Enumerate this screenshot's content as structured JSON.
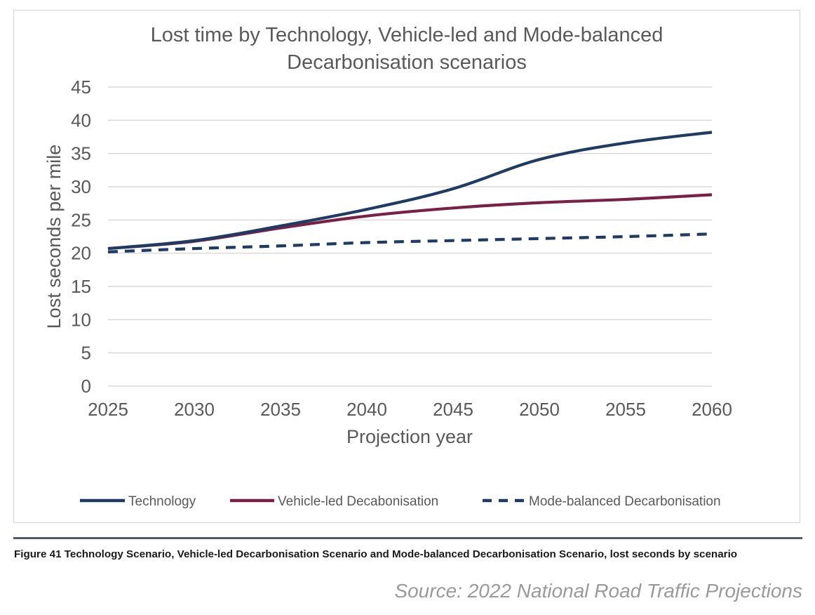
{
  "chart_data": {
    "type": "line",
    "title_lines": [
      "Lost time by Technology, Vehicle-led and Mode-balanced",
      "Decarbonisation scenarios"
    ],
    "xlabel": "Projection year",
    "ylabel": "Lost seconds per mile",
    "x": [
      2025,
      2030,
      2035,
      2040,
      2045,
      2050,
      2055,
      2060
    ],
    "x_tick_labels": [
      "2025",
      "2030",
      "2035",
      "2040",
      "2045",
      "2050",
      "2055",
      "2060"
    ],
    "y_tick_labels": [
      "0",
      "5",
      "10",
      "15",
      "20",
      "25",
      "30",
      "35",
      "40",
      "45"
    ],
    "ylim": [
      0,
      45
    ],
    "grid": true,
    "legend_position": "bottom",
    "series": [
      {
        "name": "Technology",
        "values": [
          20.7,
          21.9,
          24.1,
          26.6,
          29.7,
          34.1,
          36.6,
          38.2
        ],
        "color": "#1f3b63",
        "dash": "solid"
      },
      {
        "name": "Vehicle-led Decabonisation",
        "values": [
          20.7,
          21.8,
          23.8,
          25.6,
          26.8,
          27.6,
          28.1,
          28.8
        ],
        "color": "#7a2047",
        "dash": "solid"
      },
      {
        "name": "Mode-balanced Decarbonisation",
        "values": [
          20.2,
          20.7,
          21.1,
          21.6,
          21.9,
          22.2,
          22.5,
          22.9
        ],
        "color": "#1f3b63",
        "dash": "dashed"
      }
    ]
  },
  "caption": {
    "text": "Figure 41  Technology Scenario, Vehicle-led Decarbonisation Scenario and Mode-balanced Decarbonisation Scenario, lost seconds by scenario"
  },
  "source": {
    "text": "Source: 2022 National Road Traffic Projections"
  }
}
